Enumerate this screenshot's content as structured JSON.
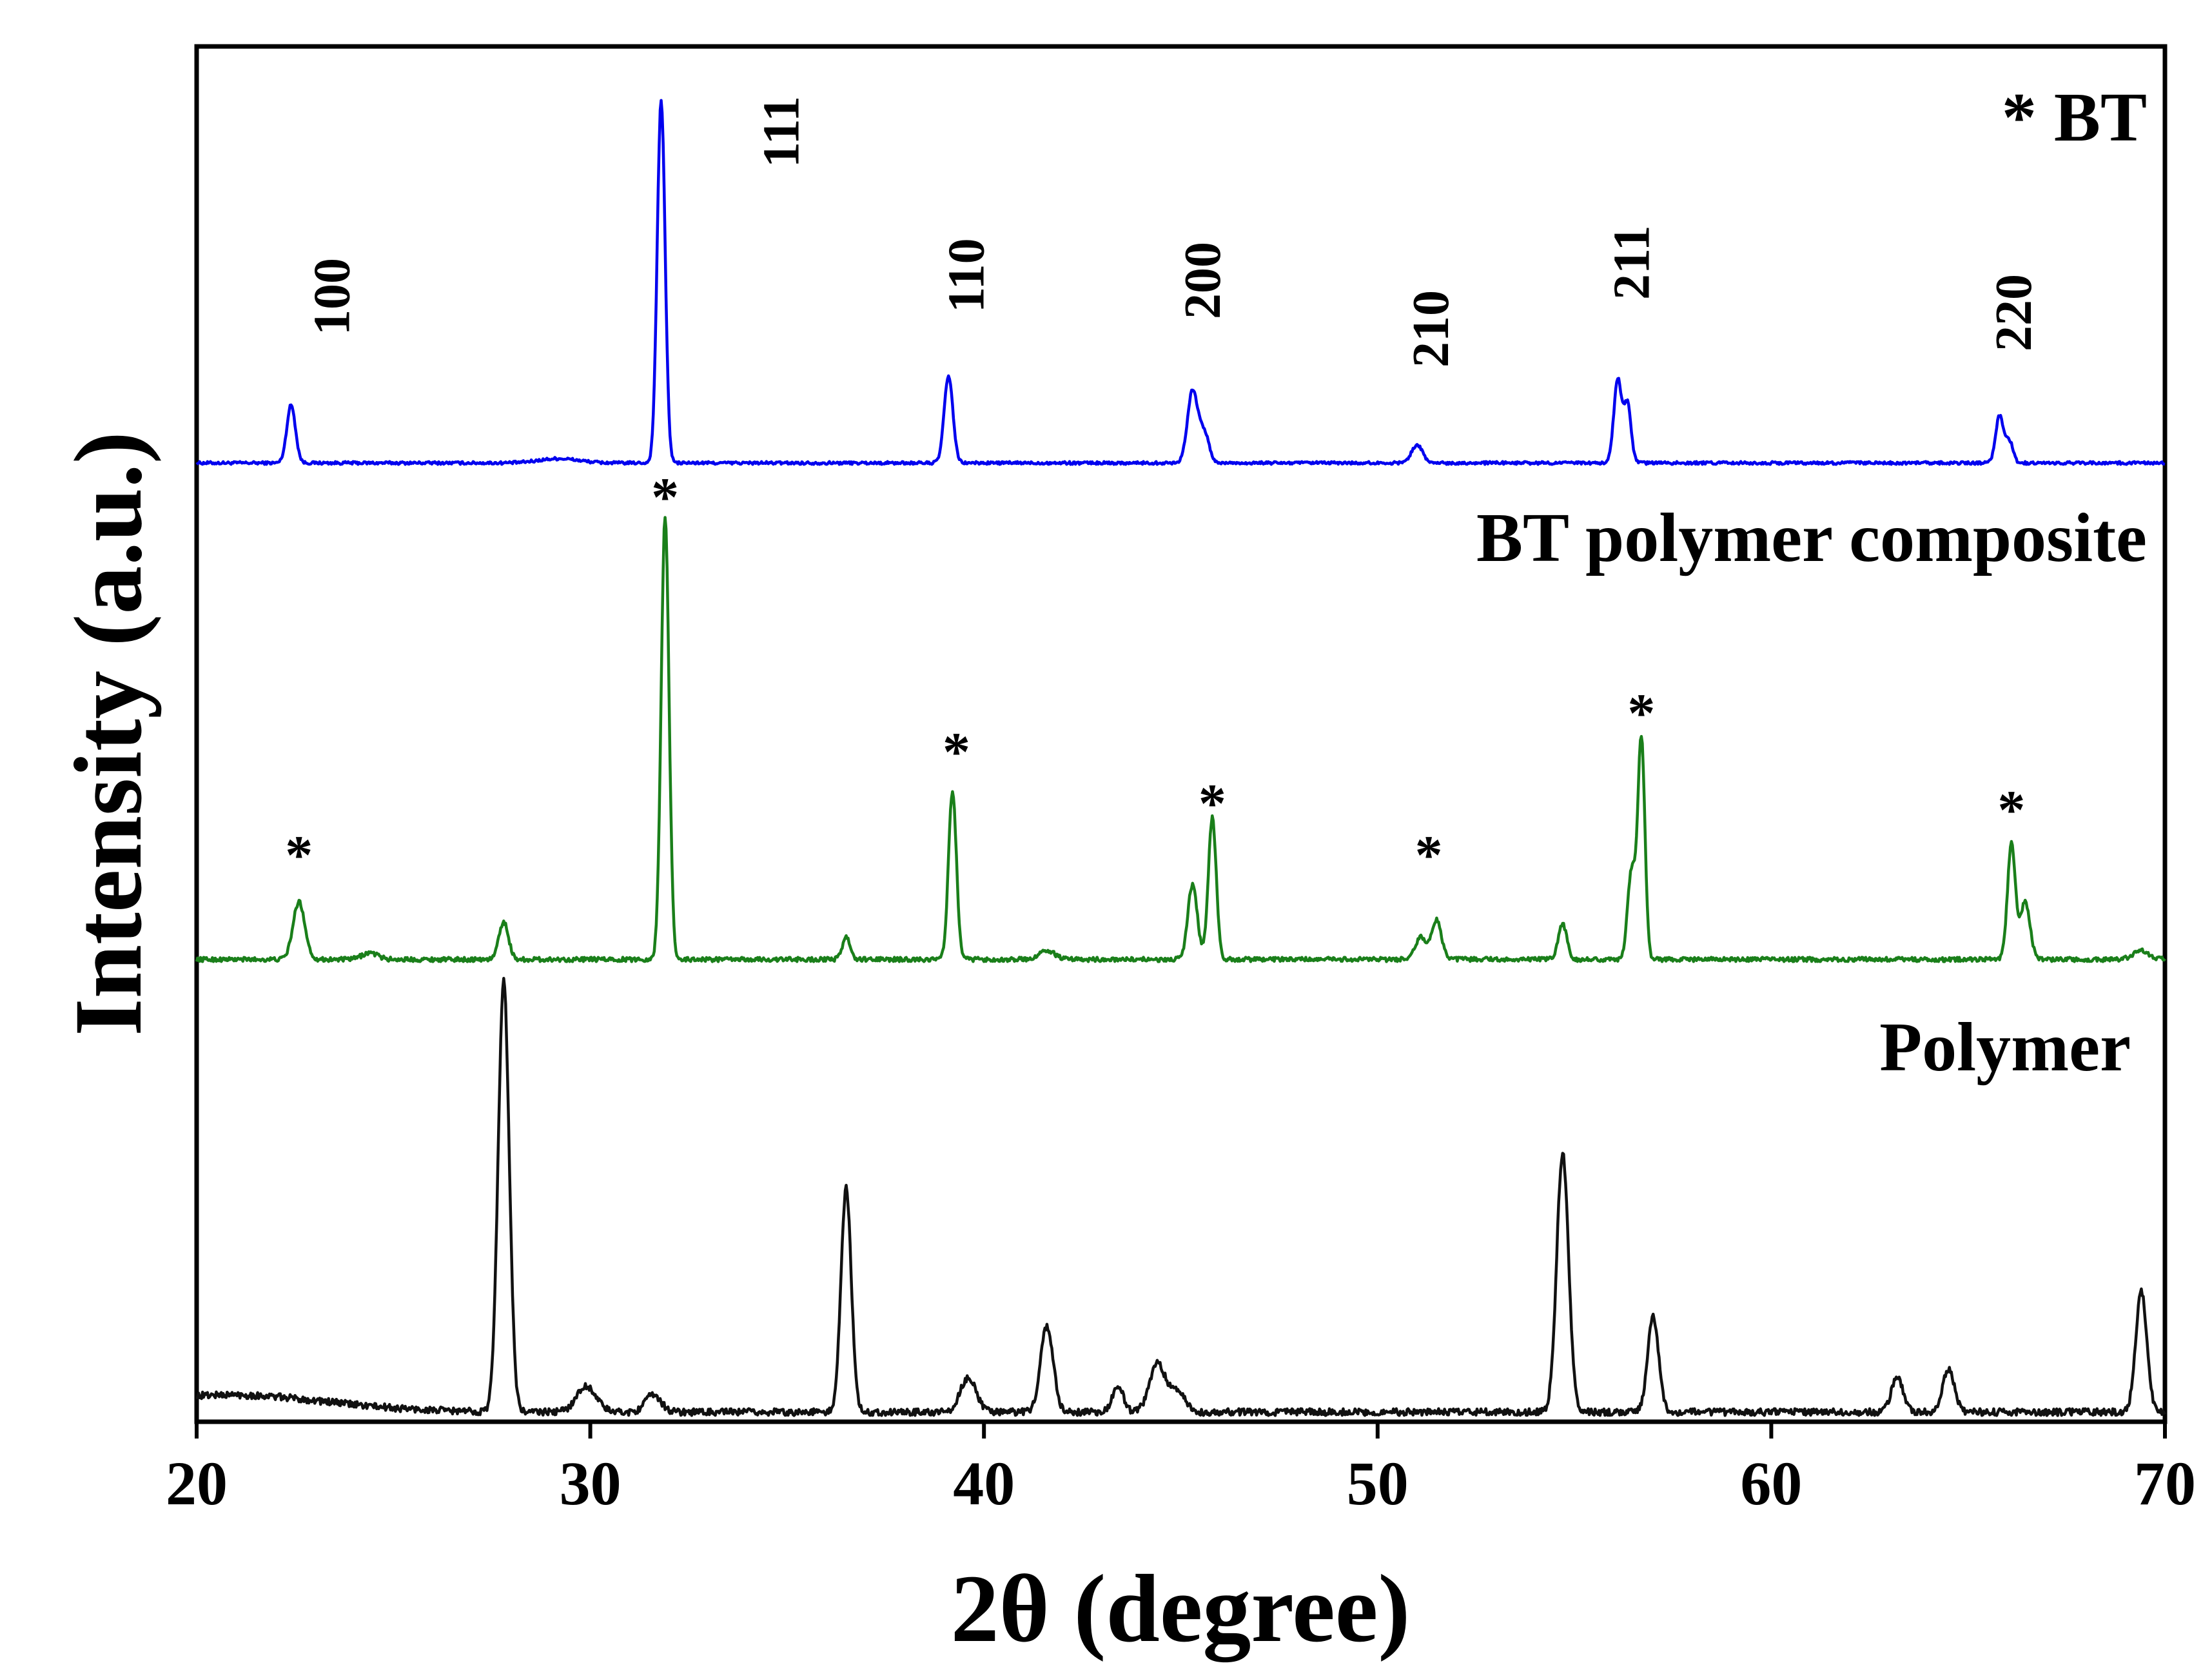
{
  "chart_data": {
    "type": "line",
    "xlabel": "2θ (degree)",
    "ylabel": "Intensity (a.u.)",
    "xlim": [
      20,
      70
    ],
    "xticks": [
      "20",
      "30",
      "40",
      "50",
      "60",
      "70"
    ],
    "yticks": [],
    "grid": false,
    "legend_text": "* BT",
    "series": [
      {
        "name": "BT",
        "color": "#0000ee",
        "baseline": 0.12,
        "noise": 0.004,
        "peaks": [
          {
            "x": 22.4,
            "h": 0.16,
            "w": 0.11
          },
          {
            "x": 29.2,
            "h": 0.012,
            "w": 0.5
          },
          {
            "x": 31.8,
            "h": 1.0,
            "w": 0.1
          },
          {
            "x": 39.1,
            "h": 0.24,
            "w": 0.11
          },
          {
            "x": 45.3,
            "h": 0.2,
            "w": 0.13
          },
          {
            "x": 45.6,
            "h": 0.08,
            "w": 0.12
          },
          {
            "x": 51.0,
            "h": 0.05,
            "w": 0.14
          },
          {
            "x": 56.1,
            "h": 0.23,
            "w": 0.1
          },
          {
            "x": 56.35,
            "h": 0.16,
            "w": 0.09
          },
          {
            "x": 65.8,
            "h": 0.13,
            "w": 0.1
          },
          {
            "x": 66.05,
            "h": 0.06,
            "w": 0.09
          }
        ],
        "label": "",
        "reflections": [
          {
            "hkl": "100",
            "x": 22.4
          },
          {
            "hkl": "111",
            "x": 34.8
          },
          {
            "hkl": "110",
            "x": 39.5
          },
          {
            "hkl": "200",
            "x": 45.5
          },
          {
            "hkl": "210",
            "x": 51.3
          },
          {
            "hkl": "211",
            "x": 56.4
          },
          {
            "hkl": "220",
            "x": 66.1
          }
        ]
      },
      {
        "name": "BT polymer composite",
        "color": "#1a7f1a",
        "baseline": 0.11,
        "noise": 0.005,
        "peaks": [
          {
            "x": 22.6,
            "h": 0.13,
            "w": 0.15
          },
          {
            "x": 24.4,
            "h": 0.015,
            "w": 0.2
          },
          {
            "x": 27.8,
            "h": 0.085,
            "w": 0.12
          },
          {
            "x": 31.9,
            "h": 1.0,
            "w": 0.1
          },
          {
            "x": 36.5,
            "h": 0.05,
            "w": 0.1
          },
          {
            "x": 39.2,
            "h": 0.38,
            "w": 0.1
          },
          {
            "x": 41.6,
            "h": 0.02,
            "w": 0.2
          },
          {
            "x": 45.3,
            "h": 0.17,
            "w": 0.12
          },
          {
            "x": 45.8,
            "h": 0.32,
            "w": 0.1
          },
          {
            "x": 51.1,
            "h": 0.05,
            "w": 0.14
          },
          {
            "x": 51.5,
            "h": 0.09,
            "w": 0.12
          },
          {
            "x": 54.7,
            "h": 0.08,
            "w": 0.11
          },
          {
            "x": 56.45,
            "h": 0.2,
            "w": 0.1
          },
          {
            "x": 56.7,
            "h": 0.5,
            "w": 0.09
          },
          {
            "x": 66.1,
            "h": 0.26,
            "w": 0.1
          },
          {
            "x": 66.45,
            "h": 0.13,
            "w": 0.12
          },
          {
            "x": 69.4,
            "h": 0.02,
            "w": 0.2
          }
        ],
        "label": "BT polymer composite",
        "asterisk_x": [
          22.6,
          31.9,
          39.3,
          45.8,
          51.3,
          56.7,
          66.1
        ]
      },
      {
        "name": "Polymer",
        "color": "#111111",
        "baseline": 0.1,
        "noise": 0.008,
        "peaks": [
          {
            "x": 20.8,
            "h": 0.04,
            "w": 2.5
          },
          {
            "x": 27.8,
            "h": 1.0,
            "w": 0.14
          },
          {
            "x": 29.9,
            "h": 0.06,
            "w": 0.25
          },
          {
            "x": 31.6,
            "h": 0.04,
            "w": 0.2
          },
          {
            "x": 36.5,
            "h": 0.52,
            "w": 0.13
          },
          {
            "x": 39.6,
            "h": 0.08,
            "w": 0.2
          },
          {
            "x": 41.6,
            "h": 0.2,
            "w": 0.16
          },
          {
            "x": 43.4,
            "h": 0.06,
            "w": 0.14
          },
          {
            "x": 44.4,
            "h": 0.11,
            "w": 0.2
          },
          {
            "x": 44.9,
            "h": 0.05,
            "w": 0.2
          },
          {
            "x": 54.7,
            "h": 0.6,
            "w": 0.15
          },
          {
            "x": 57.0,
            "h": 0.22,
            "w": 0.14
          },
          {
            "x": 63.2,
            "h": 0.08,
            "w": 0.15
          },
          {
            "x": 64.5,
            "h": 0.1,
            "w": 0.15
          },
          {
            "x": 69.4,
            "h": 0.28,
            "w": 0.14
          }
        ],
        "label": "Polymer"
      }
    ]
  }
}
